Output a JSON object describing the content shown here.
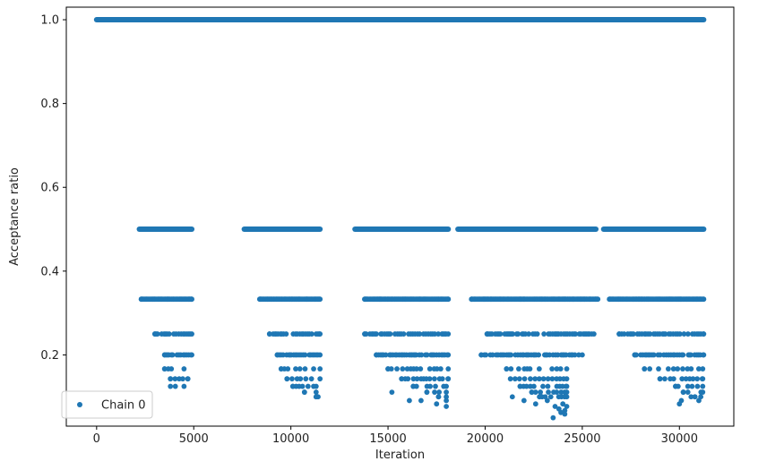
{
  "chart_data": {
    "type": "scatter",
    "title": "",
    "xlabel": "Iteration",
    "ylabel": "Acceptance ratio",
    "xlim": [
      -1560,
      32800
    ],
    "ylim": [
      0.03,
      1.03
    ],
    "xticks": [
      0,
      5000,
      10000,
      15000,
      20000,
      25000,
      30000
    ],
    "xtick_labels": [
      "0",
      "5000",
      "10000",
      "15000",
      "20000",
      "25000",
      "30000"
    ],
    "yticks": [
      0.2,
      0.4,
      0.6,
      0.8,
      1.0
    ],
    "ytick_labels": [
      "0.2",
      "0.4",
      "0.6",
      "0.8",
      "1.0"
    ],
    "grid": false,
    "legend_position": "lower-left",
    "series": [
      {
        "name": "Chain 0",
        "color": "#1f77b4",
        "marker": "circle",
        "bands": [
          {
            "y": 1.0,
            "x_ranges": [
              [
                0,
                31250
              ]
            ],
            "density": "continuous"
          },
          {
            "y": 0.5,
            "x_ranges": [
              [
                2200,
                4900
              ],
              [
                7600,
                11500
              ],
              [
                13300,
                18100
              ],
              [
                18600,
                25700
              ],
              [
                26100,
                31250
              ]
            ],
            "density": "continuous"
          },
          {
            "y": 0.333,
            "x_ranges": [
              [
                2300,
                4900
              ],
              [
                8400,
                11500
              ],
              [
                13800,
                18100
              ],
              [
                19300,
                25800
              ],
              [
                26400,
                31250
              ]
            ],
            "density": "dense"
          },
          {
            "y": 0.25,
            "x_ranges": [
              [
                3000,
                4900
              ],
              [
                8900,
                11500
              ],
              [
                13800,
                18100
              ],
              [
                20100,
                25600
              ],
              [
                26900,
                31250
              ]
            ],
            "density": "medium"
          },
          {
            "y": 0.2,
            "x_ranges": [
              [
                3500,
                4900
              ],
              [
                9300,
                11500
              ],
              [
                14400,
                18100
              ],
              [
                19800,
                25000
              ],
              [
                27700,
                31250
              ]
            ],
            "density": "medium"
          },
          {
            "y": 0.1667,
            "x_ranges": [
              [
                3500,
                4500
              ],
              [
                9500,
                11500
              ],
              [
                15000,
                18100
              ],
              [
                21100,
                24200
              ],
              [
                28200,
                31200
              ]
            ],
            "density": "sparse"
          },
          {
            "y": 0.1429,
            "x_ranges": [
              [
                3800,
                4700
              ],
              [
                9800,
                11500
              ],
              [
                15700,
                18100
              ],
              [
                21300,
                24200
              ],
              [
                29000,
                31200
              ]
            ],
            "density": "sparse"
          },
          {
            "y": 0.125,
            "x_ranges": [
              [
                3800,
                4500
              ],
              [
                10100,
                11300
              ],
              [
                16300,
                18000
              ],
              [
                21800,
                24200
              ],
              [
                29800,
                31200
              ]
            ],
            "density": "sparse"
          },
          {
            "y": 0.1111,
            "x_ranges": [
              [
                10700,
                11300
              ],
              [
                17000,
                18000
              ],
              [
                22400,
                24200
              ],
              [
                30200,
                31200
              ]
            ],
            "density": "sparse"
          },
          {
            "y": 0.1,
            "x_ranges": [
              [
                11300,
                11400
              ],
              [
                17600,
                18000
              ],
              [
                22800,
                24200
              ],
              [
                30800,
                31100
              ]
            ],
            "density": "sparse"
          }
        ],
        "points": [
          {
            "x": 15200,
            "y": 0.111
          },
          {
            "x": 16100,
            "y": 0.091
          },
          {
            "x": 16700,
            "y": 0.091
          },
          {
            "x": 17500,
            "y": 0.083
          },
          {
            "x": 18000,
            "y": 0.077
          },
          {
            "x": 18000,
            "y": 0.091
          },
          {
            "x": 21400,
            "y": 0.1
          },
          {
            "x": 22000,
            "y": 0.091
          },
          {
            "x": 22600,
            "y": 0.083
          },
          {
            "x": 23200,
            "y": 0.091
          },
          {
            "x": 23500,
            "y": 0.05
          },
          {
            "x": 23600,
            "y": 0.077
          },
          {
            "x": 23800,
            "y": 0.071
          },
          {
            "x": 23900,
            "y": 0.0625
          },
          {
            "x": 24000,
            "y": 0.083
          },
          {
            "x": 24100,
            "y": 0.067
          },
          {
            "x": 24100,
            "y": 0.0588
          },
          {
            "x": 24200,
            "y": 0.077
          },
          {
            "x": 30000,
            "y": 0.083
          },
          {
            "x": 30100,
            "y": 0.091
          },
          {
            "x": 30600,
            "y": 0.1
          },
          {
            "x": 31000,
            "y": 0.091
          }
        ]
      }
    ]
  }
}
